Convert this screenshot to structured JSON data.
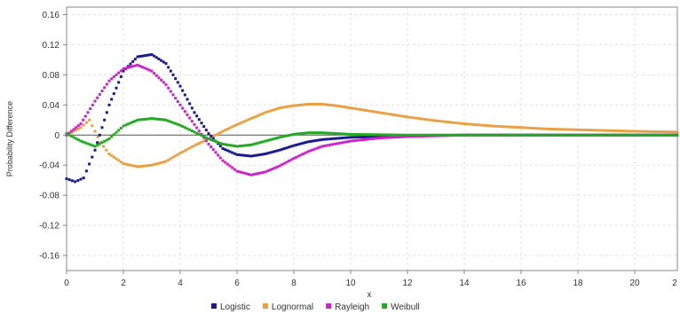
{
  "chart_data": {
    "type": "scatter",
    "title": "",
    "xlabel": "x",
    "ylabel": "Probability Difference",
    "xlim": [
      0,
      21.5
    ],
    "ylim": [
      -0.18,
      0.17
    ],
    "x_ticks": [
      "0",
      "2",
      "4",
      "6",
      "8",
      "10",
      "12",
      "14",
      "16",
      "18",
      "20",
      "2"
    ],
    "y_ticks": [
      "0.16",
      "0.12",
      "0.08",
      "0.04",
      "0",
      "-0.04",
      "-0.08",
      "-0.12",
      "-0.16"
    ],
    "grid": true,
    "legend_position": "bottom",
    "series": [
      {
        "name": "Logistic",
        "color": "#1a1a8c",
        "points": [
          [
            0,
            -0.058
          ],
          [
            0.3,
            -0.062
          ],
          [
            0.6,
            -0.057
          ],
          [
            1.0,
            -0.02
          ],
          [
            1.5,
            0.04
          ],
          [
            2.0,
            0.085
          ],
          [
            2.5,
            0.104
          ],
          [
            3.0,
            0.107
          ],
          [
            3.5,
            0.095
          ],
          [
            4.0,
            0.065
          ],
          [
            4.5,
            0.03
          ],
          [
            5.0,
            0.002
          ],
          [
            5.5,
            -0.018
          ],
          [
            6.0,
            -0.026
          ],
          [
            6.5,
            -0.028
          ],
          [
            7.0,
            -0.025
          ],
          [
            7.5,
            -0.02
          ],
          [
            8.0,
            -0.014
          ],
          [
            8.5,
            -0.009
          ],
          [
            9.0,
            -0.006
          ],
          [
            10.0,
            -0.003
          ],
          [
            11.0,
            -0.002
          ],
          [
            12.0,
            -0.001
          ],
          [
            14.0,
            0.0
          ],
          [
            16.0,
            0.0
          ],
          [
            18.0,
            0.0
          ],
          [
            20.0,
            0.0
          ],
          [
            21.5,
            0.0
          ]
        ]
      },
      {
        "name": "Lognormal",
        "color": "#e8a040",
        "points": [
          [
            0,
            0.0
          ],
          [
            0.5,
            0.01
          ],
          [
            0.8,
            0.02
          ],
          [
            1.2,
            -0.01
          ],
          [
            1.5,
            -0.025
          ],
          [
            2.0,
            -0.038
          ],
          [
            2.5,
            -0.042
          ],
          [
            3.0,
            -0.04
          ],
          [
            3.5,
            -0.035
          ],
          [
            4.0,
            -0.024
          ],
          [
            4.5,
            -0.014
          ],
          [
            5.0,
            -0.005
          ],
          [
            5.5,
            0.005
          ],
          [
            6.0,
            0.014
          ],
          [
            6.5,
            0.022
          ],
          [
            7.0,
            0.03
          ],
          [
            7.5,
            0.036
          ],
          [
            8.0,
            0.039
          ],
          [
            8.5,
            0.041
          ],
          [
            9.0,
            0.041
          ],
          [
            9.5,
            0.039
          ],
          [
            10.0,
            0.036
          ],
          [
            11.0,
            0.03
          ],
          [
            12.0,
            0.024
          ],
          [
            13.0,
            0.019
          ],
          [
            14.0,
            0.015
          ],
          [
            15.0,
            0.012
          ],
          [
            16.0,
            0.01
          ],
          [
            17.0,
            0.008
          ],
          [
            18.0,
            0.007
          ],
          [
            19.0,
            0.006
          ],
          [
            20.0,
            0.005
          ],
          [
            21.5,
            0.004
          ]
        ]
      },
      {
        "name": "Rayleigh",
        "color": "#cc22cc",
        "points": [
          [
            0,
            0.0
          ],
          [
            0.5,
            0.015
          ],
          [
            1.0,
            0.045
          ],
          [
            1.5,
            0.072
          ],
          [
            2.0,
            0.088
          ],
          [
            2.5,
            0.093
          ],
          [
            3.0,
            0.085
          ],
          [
            3.5,
            0.067
          ],
          [
            4.0,
            0.04
          ],
          [
            4.5,
            0.014
          ],
          [
            5.0,
            -0.012
          ],
          [
            5.5,
            -0.034
          ],
          [
            6.0,
            -0.048
          ],
          [
            6.5,
            -0.053
          ],
          [
            7.0,
            -0.049
          ],
          [
            7.5,
            -0.041
          ],
          [
            8.0,
            -0.031
          ],
          [
            8.5,
            -0.022
          ],
          [
            9.0,
            -0.015
          ],
          [
            10.0,
            -0.008
          ],
          [
            11.0,
            -0.004
          ],
          [
            12.0,
            -0.002
          ],
          [
            14.0,
            0.0
          ],
          [
            16.0,
            0.0
          ],
          [
            18.0,
            0.0
          ],
          [
            20.0,
            0.0
          ],
          [
            21.5,
            0.0
          ]
        ]
      },
      {
        "name": "Weibull",
        "color": "#22aa22",
        "points": [
          [
            0,
            0.002
          ],
          [
            0.5,
            -0.008
          ],
          [
            1.0,
            -0.015
          ],
          [
            1.5,
            -0.005
          ],
          [
            2.0,
            0.012
          ],
          [
            2.5,
            0.02
          ],
          [
            3.0,
            0.022
          ],
          [
            3.5,
            0.02
          ],
          [
            4.0,
            0.013
          ],
          [
            4.5,
            0.004
          ],
          [
            5.0,
            -0.005
          ],
          [
            5.5,
            -0.012
          ],
          [
            6.0,
            -0.015
          ],
          [
            6.5,
            -0.013
          ],
          [
            7.0,
            -0.008
          ],
          [
            7.5,
            -0.003
          ],
          [
            8.0,
            0.001
          ],
          [
            8.5,
            0.003
          ],
          [
            9.0,
            0.003
          ],
          [
            9.5,
            0.002
          ],
          [
            10.0,
            0.001
          ],
          [
            12.0,
            0.0
          ],
          [
            14.0,
            0.0
          ],
          [
            16.0,
            0.0
          ],
          [
            18.0,
            0.0
          ],
          [
            20.0,
            0.0
          ],
          [
            21.5,
            0.0
          ]
        ]
      }
    ]
  }
}
